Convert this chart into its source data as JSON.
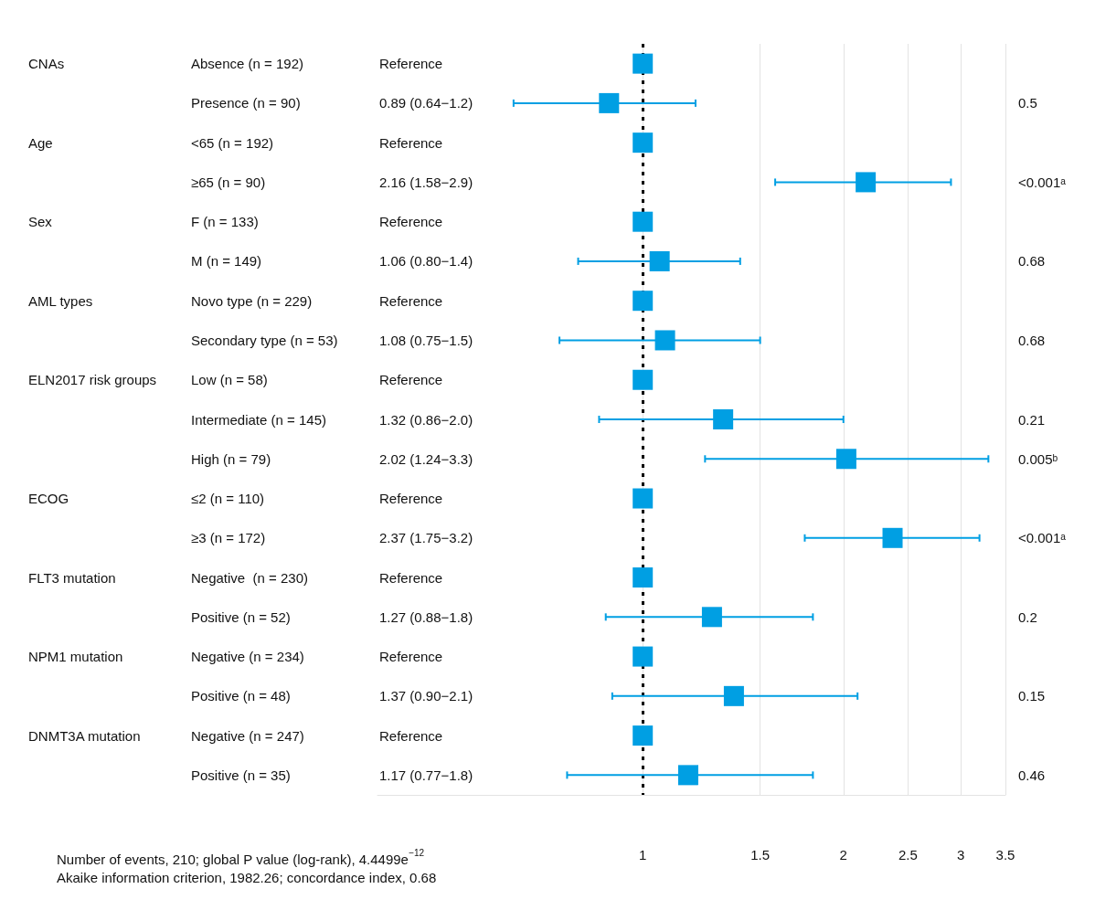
{
  "chart_data": {
    "type": "scatter",
    "orientation": "horizontal",
    "log": "x",
    "categories": [
      "Absence (n = 192)",
      "Presence (n = 90)",
      "<65 (n = 192)",
      "≥65 (n = 90)",
      "F (n = 133)",
      "M (n = 149)",
      "Novo type (n = 229)",
      "Secondary type (n = 53)",
      "Low (n = 58)",
      "Intermediate (n = 145)",
      "High (n = 79)",
      "≤2 (n = 110)",
      "≥3 (n = 172)",
      "Negative  (n = 230)",
      "Positive (n = 52)",
      "Negative (n = 234)",
      "Positive (n = 48)",
      "Negative (n = 247)",
      "Positive (n = 35)"
    ],
    "values": [
      1,
      0.89,
      1,
      2.16,
      1,
      1.06,
      1,
      1.08,
      1,
      1.32,
      2.02,
      1,
      2.37,
      1,
      1.27,
      1,
      1.37,
      1,
      1.17
    ],
    "errors": [
      null,
      [
        0.64,
        1.2
      ],
      null,
      [
        1.58,
        2.9
      ],
      null,
      [
        0.8,
        1.4
      ],
      null,
      [
        0.75,
        1.5
      ],
      null,
      [
        0.86,
        2.0
      ],
      [
        1.24,
        3.3
      ],
      null,
      [
        1.75,
        3.2
      ],
      null,
      [
        0.88,
        1.8
      ],
      null,
      [
        0.9,
        2.1
      ],
      null,
      [
        0.77,
        1.8
      ]
    ],
    "y2_categories": [
      null,
      "0.5",
      null,
      "<0.001ᵃ",
      null,
      "0.68",
      null,
      "0.68",
      null,
      "0.21",
      "0.005ᵇ",
      null,
      "<0.001ᵃ",
      null,
      "0.2",
      null,
      "0.15",
      null,
      "0.46"
    ],
    "color": "#009fe3",
    "marker": "square",
    "xlim": [
      0.4,
      3.5
    ],
    "xticks": [
      1,
      1.5,
      2,
      2.5,
      3,
      3.5
    ],
    "grid": "x",
    "ref_lines": [
      {
        "axis": "x",
        "value": 1,
        "color": "#000000",
        "line_style": "dotted"
      }
    ],
    "annotations": [
      "CNAs",
      "Age",
      "Sex",
      "AML types",
      "ELN2017 risk groups",
      "ECOG",
      "FLT3 mutation",
      "NPM1 mutation",
      "DNMT3A mutation",
      "Reference",
      "0.89 (0.64−1.2)",
      "Reference",
      "2.16 (1.58−2.9)",
      "Reference",
      "1.06 (0.80−1.4)",
      "Reference",
      "1.08 (0.75−1.5)",
      "Reference",
      "1.32 (0.86−2.0)",
      "2.02 (1.24−3.3)",
      "Reference",
      "2.37 (1.75−3.2)",
      "Reference",
      "1.27 (0.88−1.8)",
      "Reference",
      "1.37 (0.90−2.1)",
      "Reference",
      "1.17 (0.77−1.8)",
      "Number of events, 210; global P value (log-rank), 4.4499e$^{−12}$",
      "Akaike information criterion, 1982.26; concordance index, 0.68"
    ]
  }
}
